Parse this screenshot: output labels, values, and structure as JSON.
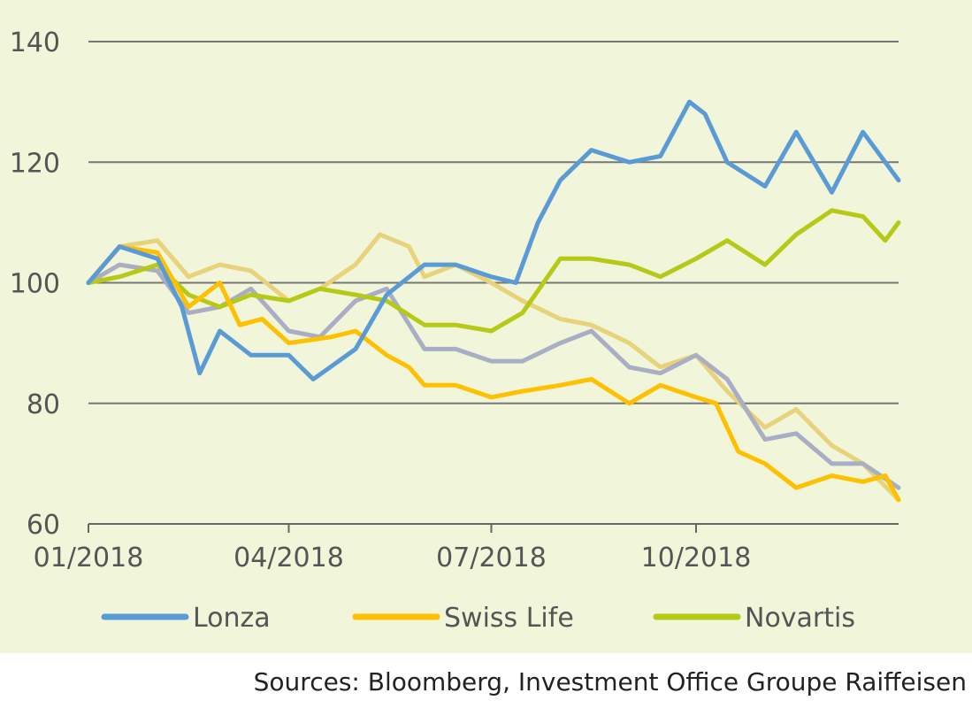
{
  "chart_data": {
    "type": "line",
    "y_ticks": [
      "140",
      "120",
      "100",
      "80",
      "60"
    ],
    "x_ticks": [
      "01/2018",
      "04/2018",
      "07/2018",
      "10/2018"
    ],
    "ylim": [
      60,
      140
    ],
    "x_range": [
      "2018-01-01",
      "2018-12-31"
    ],
    "grid": "horizontal",
    "legend_position": "bottom",
    "series": [
      {
        "name": "Lonza",
        "color": "#5b9bd5",
        "x": [
          "2018-01-01",
          "2018-01-15",
          "2018-02-01",
          "2018-02-12",
          "2018-02-20",
          "2018-03-01",
          "2018-03-15",
          "2018-04-01",
          "2018-04-12",
          "2018-05-01",
          "2018-05-15",
          "2018-06-01",
          "2018-06-15",
          "2018-07-01",
          "2018-07-12",
          "2018-07-22",
          "2018-08-01",
          "2018-08-15",
          "2018-09-01",
          "2018-09-15",
          "2018-09-28",
          "2018-10-05",
          "2018-10-15",
          "2018-11-01",
          "2018-11-15",
          "2018-12-01",
          "2018-12-15",
          "2018-12-31"
        ],
        "values": [
          100,
          106,
          104,
          96,
          85,
          92,
          88,
          88,
          84,
          89,
          98,
          103,
          103,
          101,
          100,
          110,
          117,
          122,
          120,
          121,
          130,
          128,
          120,
          116,
          125,
          115,
          125,
          117
        ]
      },
      {
        "name": "Swiss Life",
        "color": "#ffc000",
        "x": [
          "2018-01-01",
          "2018-01-15",
          "2018-02-01",
          "2018-02-15",
          "2018-03-01",
          "2018-03-10",
          "2018-03-20",
          "2018-04-01",
          "2018-04-20",
          "2018-05-01",
          "2018-05-15",
          "2018-05-25",
          "2018-06-01",
          "2018-06-15",
          "2018-07-01",
          "2018-07-15",
          "2018-08-01",
          "2018-08-15",
          "2018-09-01",
          "2018-09-15",
          "2018-10-01",
          "2018-10-10",
          "2018-10-20",
          "2018-11-01",
          "2018-11-15",
          "2018-12-01",
          "2018-12-15",
          "2018-12-25",
          "2018-12-31"
        ],
        "values": [
          100,
          106,
          105,
          96,
          100,
          93,
          94,
          90,
          91,
          92,
          88,
          86,
          83,
          83,
          81,
          82,
          83,
          84,
          80,
          83,
          81,
          80,
          72,
          70,
          66,
          68,
          67,
          68,
          64
        ]
      },
      {
        "name": "Novartis",
        "color": "#b5c916",
        "x": [
          "2018-01-01",
          "2018-01-15",
          "2018-02-01",
          "2018-02-15",
          "2018-03-01",
          "2018-03-15",
          "2018-04-01",
          "2018-04-15",
          "2018-05-01",
          "2018-05-15",
          "2018-06-01",
          "2018-06-15",
          "2018-07-01",
          "2018-07-15",
          "2018-08-01",
          "2018-08-15",
          "2018-09-01",
          "2018-09-15",
          "2018-10-01",
          "2018-10-15",
          "2018-11-01",
          "2018-11-15",
          "2018-12-01",
          "2018-12-15",
          "2018-12-25",
          "2018-12-31"
        ],
        "values": [
          100,
          101,
          103,
          98,
          96,
          98,
          97,
          99,
          98,
          97,
          93,
          93,
          92,
          95,
          104,
          104,
          103,
          101,
          104,
          107,
          103,
          108,
          112,
          111,
          107,
          110
        ]
      },
      {
        "name": "",
        "color": "#a9aec4",
        "x": [
          "2018-01-01",
          "2018-01-15",
          "2018-02-01",
          "2018-02-15",
          "2018-03-01",
          "2018-03-15",
          "2018-04-01",
          "2018-04-15",
          "2018-05-01",
          "2018-05-15",
          "2018-06-01",
          "2018-06-15",
          "2018-07-01",
          "2018-07-15",
          "2018-08-01",
          "2018-08-15",
          "2018-09-01",
          "2018-09-15",
          "2018-10-01",
          "2018-10-15",
          "2018-11-01",
          "2018-11-15",
          "2018-12-01",
          "2018-12-15",
          "2018-12-31"
        ],
        "values": [
          100,
          103,
          102,
          95,
          96,
          99,
          92,
          91,
          97,
          99,
          89,
          89,
          87,
          87,
          90,
          92,
          86,
          85,
          88,
          84,
          74,
          75,
          70,
          70,
          66
        ]
      },
      {
        "name": "",
        "color": "#e8d27a",
        "x": [
          "2018-01-01",
          "2018-01-15",
          "2018-02-01",
          "2018-02-15",
          "2018-03-01",
          "2018-03-15",
          "2018-04-01",
          "2018-04-15",
          "2018-05-01",
          "2018-05-12",
          "2018-05-25",
          "2018-06-01",
          "2018-06-15",
          "2018-07-01",
          "2018-07-15",
          "2018-08-01",
          "2018-08-15",
          "2018-09-01",
          "2018-09-15",
          "2018-10-01",
          "2018-10-15",
          "2018-11-01",
          "2018-11-15",
          "2018-12-01",
          "2018-12-15",
          "2018-12-31"
        ],
        "values": [
          100,
          106,
          107,
          101,
          103,
          102,
          97,
          99,
          103,
          108,
          106,
          101,
          103,
          100,
          97,
          94,
          93,
          90,
          86,
          88,
          82,
          76,
          79,
          73,
          70,
          64
        ]
      }
    ]
  },
  "source": "Sources: Bloomberg, Investment Office Groupe Raiffeisen"
}
